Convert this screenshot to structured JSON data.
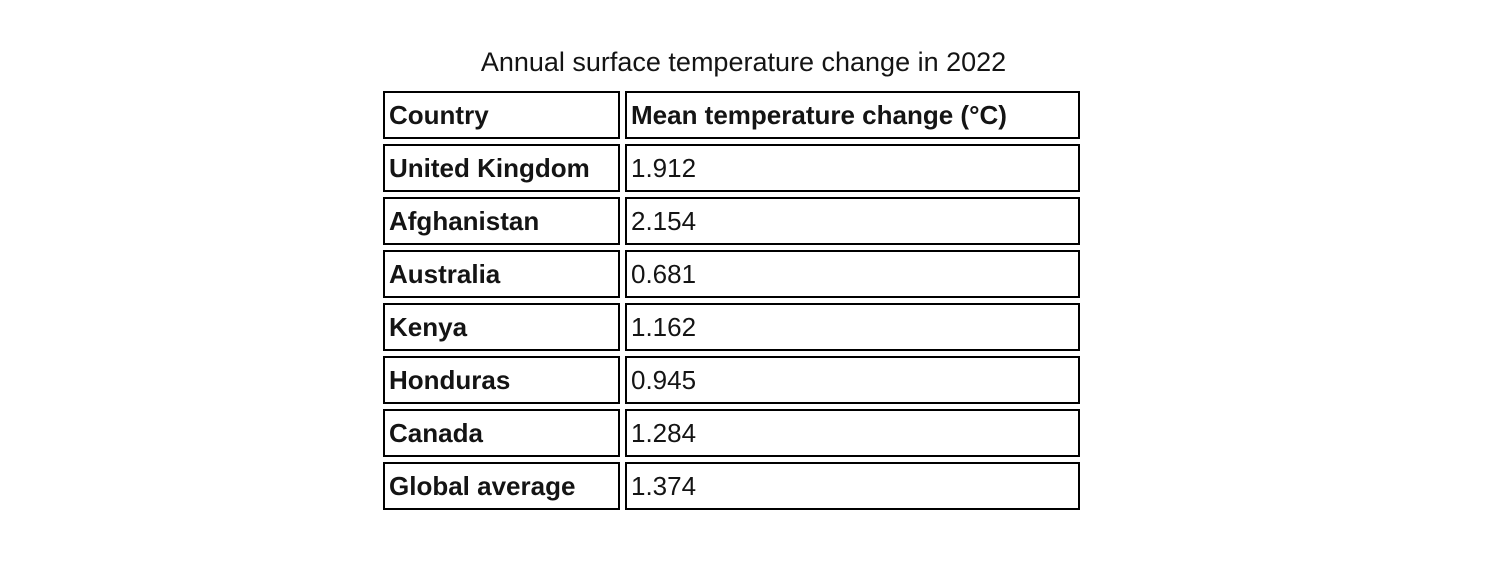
{
  "chart_data": {
    "type": "table",
    "title": "Annual surface temperature change in 2022",
    "columns": [
      "Country",
      "Mean temperature change (°C)"
    ],
    "rows": [
      [
        "United Kingdom",
        "1.912"
      ],
      [
        "Afghanistan",
        "2.154"
      ],
      [
        "Australia",
        "0.681"
      ],
      [
        "Kenya",
        "1.162"
      ],
      [
        "Honduras",
        "0.945"
      ],
      [
        "Canada",
        "1.284"
      ],
      [
        "Global average",
        "1.374"
      ]
    ],
    "layout": {
      "border_color": "#000000",
      "text_color": "#141414",
      "background_color": "#ffffff",
      "value_column_unit": "°C"
    }
  }
}
